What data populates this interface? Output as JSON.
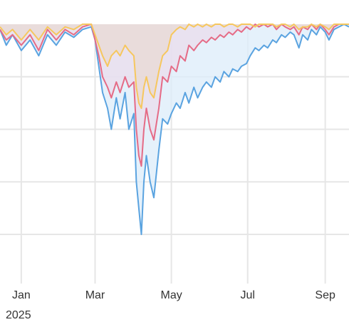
{
  "chart_data": {
    "type": "area",
    "x_axis": {
      "type": "date",
      "range": [
        "2024-12-15",
        "2025-09-20"
      ],
      "ticks": [
        {
          "date": "2025-01-01",
          "label": "Jan"
        },
        {
          "date": "2025-03-01",
          "label": "Mar"
        },
        {
          "date": "2025-05-01",
          "label": "May"
        },
        {
          "date": "2025-07-01",
          "label": "Jul"
        },
        {
          "date": "2025-09-01",
          "label": "Sep"
        }
      ],
      "year_label": "2025"
    },
    "y_axis": {
      "range": [
        -0.48,
        0.0
      ],
      "gridlines": [
        -0.1,
        -0.2,
        -0.3,
        -0.4
      ],
      "tick_labels_visible": false
    },
    "grid": true,
    "legend": "none",
    "series": [
      {
        "color": "#5aa3e0",
        "fill": "#dcecfa",
        "points": [
          [
            "2024-12-15",
            -0.01
          ],
          [
            "2024-12-20",
            -0.04
          ],
          [
            "2024-12-25",
            -0.02
          ],
          [
            "2025-01-01",
            -0.05
          ],
          [
            "2025-01-08",
            -0.03
          ],
          [
            "2025-01-15",
            -0.06
          ],
          [
            "2025-01-22",
            -0.02
          ],
          [
            "2025-01-29",
            -0.04
          ],
          [
            "2025-02-05",
            -0.015
          ],
          [
            "2025-02-12",
            -0.025
          ],
          [
            "2025-02-19",
            -0.01
          ],
          [
            "2025-02-26",
            -0.005
          ],
          [
            "2025-03-01",
            -0.03
          ],
          [
            "2025-03-04",
            -0.08
          ],
          [
            "2025-03-07",
            -0.13
          ],
          [
            "2025-03-11",
            -0.16
          ],
          [
            "2025-03-14",
            -0.2
          ],
          [
            "2025-03-18",
            -0.14
          ],
          [
            "2025-03-21",
            -0.18
          ],
          [
            "2025-03-25",
            -0.13
          ],
          [
            "2025-03-28",
            -0.2
          ],
          [
            "2025-04-01",
            -0.17
          ],
          [
            "2025-04-03",
            -0.3
          ],
          [
            "2025-04-05",
            -0.35
          ],
          [
            "2025-04-07",
            -0.4
          ],
          [
            "2025-04-09",
            -0.3
          ],
          [
            "2025-04-11",
            -0.25
          ],
          [
            "2025-04-14",
            -0.3
          ],
          [
            "2025-04-17",
            -0.33
          ],
          [
            "2025-04-21",
            -0.24
          ],
          [
            "2025-04-24",
            -0.18
          ],
          [
            "2025-04-28",
            -0.19
          ],
          [
            "2025-05-01",
            -0.17
          ],
          [
            "2025-05-05",
            -0.15
          ],
          [
            "2025-05-08",
            -0.16
          ],
          [
            "2025-05-12",
            -0.13
          ],
          [
            "2025-05-15",
            -0.15
          ],
          [
            "2025-05-19",
            -0.12
          ],
          [
            "2025-05-22",
            -0.14
          ],
          [
            "2025-05-26",
            -0.12
          ],
          [
            "2025-05-29",
            -0.11
          ],
          [
            "2025-06-02",
            -0.12
          ],
          [
            "2025-06-05",
            -0.1
          ],
          [
            "2025-06-09",
            -0.11
          ],
          [
            "2025-06-12",
            -0.09
          ],
          [
            "2025-06-16",
            -0.1
          ],
          [
            "2025-06-19",
            -0.085
          ],
          [
            "2025-06-23",
            -0.09
          ],
          [
            "2025-06-26",
            -0.08
          ],
          [
            "2025-06-30",
            -0.075
          ],
          [
            "2025-07-03",
            -0.06
          ],
          [
            "2025-07-07",
            -0.045
          ],
          [
            "2025-07-10",
            -0.05
          ],
          [
            "2025-07-14",
            -0.04
          ],
          [
            "2025-07-17",
            -0.045
          ],
          [
            "2025-07-21",
            -0.03
          ],
          [
            "2025-07-24",
            -0.035
          ],
          [
            "2025-07-28",
            -0.02
          ],
          [
            "2025-07-31",
            -0.025
          ],
          [
            "2025-08-04",
            -0.015
          ],
          [
            "2025-08-07",
            -0.02
          ],
          [
            "2025-08-11",
            -0.045
          ],
          [
            "2025-08-14",
            -0.02
          ],
          [
            "2025-08-18",
            -0.03
          ],
          [
            "2025-08-21",
            -0.01
          ],
          [
            "2025-08-25",
            -0.02
          ],
          [
            "2025-08-28",
            -0.005
          ],
          [
            "2025-09-01",
            -0.015
          ],
          [
            "2025-09-04",
            -0.03
          ],
          [
            "2025-09-08",
            -0.01
          ],
          [
            "2025-09-12",
            -0.005
          ],
          [
            "2025-09-16",
            0.0
          ],
          [
            "2025-09-20",
            -0.005
          ]
        ]
      },
      {
        "color": "#e56b86",
        "fill": "#e9dcec",
        "points": [
          [
            "2024-12-15",
            -0.01
          ],
          [
            "2024-12-20",
            -0.03
          ],
          [
            "2024-12-25",
            -0.02
          ],
          [
            "2025-01-01",
            -0.04
          ],
          [
            "2025-01-08",
            -0.02
          ],
          [
            "2025-01-15",
            -0.05
          ],
          [
            "2025-01-22",
            -0.01
          ],
          [
            "2025-01-29",
            -0.03
          ],
          [
            "2025-02-05",
            -0.01
          ],
          [
            "2025-02-12",
            -0.02
          ],
          [
            "2025-02-19",
            -0.005
          ],
          [
            "2025-02-26",
            0.0
          ],
          [
            "2025-03-01",
            -0.03
          ],
          [
            "2025-03-04",
            -0.06
          ],
          [
            "2025-03-07",
            -0.1
          ],
          [
            "2025-03-11",
            -0.12
          ],
          [
            "2025-03-14",
            -0.14
          ],
          [
            "2025-03-18",
            -0.11
          ],
          [
            "2025-03-21",
            -0.13
          ],
          [
            "2025-03-25",
            -0.1
          ],
          [
            "2025-03-28",
            -0.12
          ],
          [
            "2025-04-01",
            -0.11
          ],
          [
            "2025-04-03",
            -0.2
          ],
          [
            "2025-04-05",
            -0.25
          ],
          [
            "2025-04-07",
            -0.27
          ],
          [
            "2025-04-09",
            -0.2
          ],
          [
            "2025-04-11",
            -0.16
          ],
          [
            "2025-04-14",
            -0.2
          ],
          [
            "2025-04-17",
            -0.22
          ],
          [
            "2025-04-21",
            -0.16
          ],
          [
            "2025-04-24",
            -0.1
          ],
          [
            "2025-04-28",
            -0.11
          ],
          [
            "2025-05-01",
            -0.08
          ],
          [
            "2025-05-05",
            -0.09
          ],
          [
            "2025-05-08",
            -0.06
          ],
          [
            "2025-05-12",
            -0.07
          ],
          [
            "2025-05-15",
            -0.04
          ],
          [
            "2025-05-19",
            -0.05
          ],
          [
            "2025-05-22",
            -0.04
          ],
          [
            "2025-05-26",
            -0.03
          ],
          [
            "2025-05-29",
            -0.035
          ],
          [
            "2025-06-02",
            -0.025
          ],
          [
            "2025-06-05",
            -0.03
          ],
          [
            "2025-06-09",
            -0.02
          ],
          [
            "2025-06-12",
            -0.025
          ],
          [
            "2025-06-16",
            -0.015
          ],
          [
            "2025-06-19",
            -0.02
          ],
          [
            "2025-06-23",
            -0.01
          ],
          [
            "2025-06-26",
            -0.015
          ],
          [
            "2025-06-30",
            -0.005
          ],
          [
            "2025-07-03",
            -0.01
          ],
          [
            "2025-07-07",
            0.0
          ],
          [
            "2025-07-10",
            -0.005
          ],
          [
            "2025-07-14",
            0.0
          ],
          [
            "2025-07-17",
            -0.005
          ],
          [
            "2025-07-21",
            0.0
          ],
          [
            "2025-07-24",
            -0.01
          ],
          [
            "2025-07-28",
            0.0
          ],
          [
            "2025-07-31",
            -0.005
          ],
          [
            "2025-08-04",
            -0.01
          ],
          [
            "2025-08-07",
            -0.005
          ],
          [
            "2025-08-11",
            -0.02
          ],
          [
            "2025-08-14",
            -0.005
          ],
          [
            "2025-08-18",
            -0.01
          ],
          [
            "2025-08-21",
            0.0
          ],
          [
            "2025-08-25",
            -0.01
          ],
          [
            "2025-08-28",
            0.0
          ],
          [
            "2025-09-01",
            -0.01
          ],
          [
            "2025-09-04",
            -0.02
          ],
          [
            "2025-09-08",
            -0.005
          ],
          [
            "2025-09-12",
            0.0
          ],
          [
            "2025-09-16",
            0.0
          ],
          [
            "2025-09-20",
            0.0
          ]
        ]
      },
      {
        "color": "#f6c75e",
        "fill": "#e8d9d4",
        "points": [
          [
            "2024-12-15",
            -0.005
          ],
          [
            "2024-12-20",
            -0.02
          ],
          [
            "2024-12-25",
            -0.01
          ],
          [
            "2025-01-01",
            -0.03
          ],
          [
            "2025-01-08",
            -0.01
          ],
          [
            "2025-01-15",
            -0.03
          ],
          [
            "2025-01-22",
            -0.005
          ],
          [
            "2025-01-29",
            -0.02
          ],
          [
            "2025-02-05",
            -0.005
          ],
          [
            "2025-02-12",
            -0.01
          ],
          [
            "2025-02-19",
            0.0
          ],
          [
            "2025-02-26",
            0.0
          ],
          [
            "2025-03-01",
            -0.02
          ],
          [
            "2025-03-04",
            -0.04
          ],
          [
            "2025-03-07",
            -0.06
          ],
          [
            "2025-03-11",
            -0.08
          ],
          [
            "2025-03-14",
            -0.06
          ],
          [
            "2025-03-18",
            -0.05
          ],
          [
            "2025-03-21",
            -0.06
          ],
          [
            "2025-03-25",
            -0.04
          ],
          [
            "2025-03-28",
            -0.05
          ],
          [
            "2025-04-01",
            -0.06
          ],
          [
            "2025-04-03",
            -0.12
          ],
          [
            "2025-04-05",
            -0.15
          ],
          [
            "2025-04-07",
            -0.16
          ],
          [
            "2025-04-09",
            -0.12
          ],
          [
            "2025-04-11",
            -0.1
          ],
          [
            "2025-04-14",
            -0.13
          ],
          [
            "2025-04-17",
            -0.14
          ],
          [
            "2025-04-21",
            -0.09
          ],
          [
            "2025-04-24",
            -0.06
          ],
          [
            "2025-04-28",
            -0.05
          ],
          [
            "2025-05-01",
            -0.02
          ],
          [
            "2025-05-05",
            -0.01
          ],
          [
            "2025-05-08",
            -0.005
          ],
          [
            "2025-05-12",
            -0.01
          ],
          [
            "2025-05-15",
            0.0
          ],
          [
            "2025-05-19",
            -0.005
          ],
          [
            "2025-05-22",
            0.0
          ],
          [
            "2025-05-26",
            -0.005
          ],
          [
            "2025-05-29",
            0.0
          ],
          [
            "2025-06-02",
            -0.005
          ],
          [
            "2025-06-05",
            0.0
          ],
          [
            "2025-06-09",
            0.0
          ],
          [
            "2025-06-12",
            -0.005
          ],
          [
            "2025-06-16",
            0.0
          ],
          [
            "2025-06-19",
            0.0
          ],
          [
            "2025-06-23",
            -0.005
          ],
          [
            "2025-06-26",
            0.0
          ],
          [
            "2025-06-30",
            0.0
          ],
          [
            "2025-07-03",
            0.0
          ],
          [
            "2025-07-07",
            -0.005
          ],
          [
            "2025-07-10",
            0.0
          ],
          [
            "2025-07-14",
            0.0
          ],
          [
            "2025-07-17",
            0.0
          ],
          [
            "2025-07-21",
            0.0
          ],
          [
            "2025-07-24",
            -0.005
          ],
          [
            "2025-07-28",
            0.0
          ],
          [
            "2025-07-31",
            0.0
          ],
          [
            "2025-08-04",
            -0.005
          ],
          [
            "2025-08-07",
            0.0
          ],
          [
            "2025-08-11",
            -0.01
          ],
          [
            "2025-08-14",
            -0.005
          ],
          [
            "2025-08-18",
            -0.005
          ],
          [
            "2025-08-21",
            0.0
          ],
          [
            "2025-08-25",
            -0.005
          ],
          [
            "2025-08-28",
            0.0
          ],
          [
            "2025-09-01",
            -0.005
          ],
          [
            "2025-09-04",
            -0.01
          ],
          [
            "2025-09-08",
            0.0
          ],
          [
            "2025-09-12",
            0.0
          ],
          [
            "2025-09-16",
            0.0
          ],
          [
            "2025-09-20",
            0.0
          ]
        ]
      }
    ]
  }
}
